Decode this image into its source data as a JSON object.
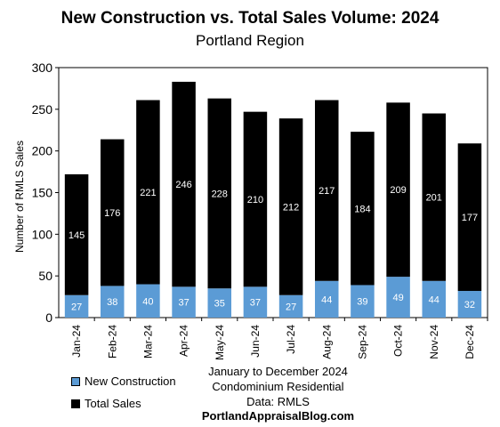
{
  "chart_data": {
    "type": "bar",
    "stacked": true,
    "title": "New Construction vs. Total Sales Volume: 2024",
    "subtitle": "Portland Region",
    "xlabel": "",
    "ylabel": "Number of RMLS Sales",
    "ylim": [
      0,
      300
    ],
    "yticks": [
      0,
      50,
      100,
      150,
      200,
      250,
      300
    ],
    "categories": [
      "Jan-24",
      "Feb-24",
      "Mar-24",
      "Apr-24",
      "May-24",
      "Jun-24",
      "Jul-24",
      "Aug-24",
      "Sep-24",
      "Oct-24",
      "Nov-24",
      "Dec-24"
    ],
    "series": [
      {
        "name": "New Construction",
        "color": "#5b9bd5",
        "values": [
          27,
          38,
          40,
          37,
          35,
          37,
          27,
          44,
          39,
          49,
          44,
          32
        ]
      },
      {
        "name": "Total Sales",
        "color": "#000000",
        "values": [
          145,
          176,
          221,
          246,
          228,
          210,
          212,
          217,
          184,
          209,
          201,
          177
        ]
      }
    ],
    "legend_position": "bottom-left",
    "grid": false
  },
  "footer": {
    "line1": "January to December 2024",
    "line2": "Condominium Residential",
    "line3": "Data: RMLS",
    "line4": "PortlandAppraisalBlog.com"
  }
}
